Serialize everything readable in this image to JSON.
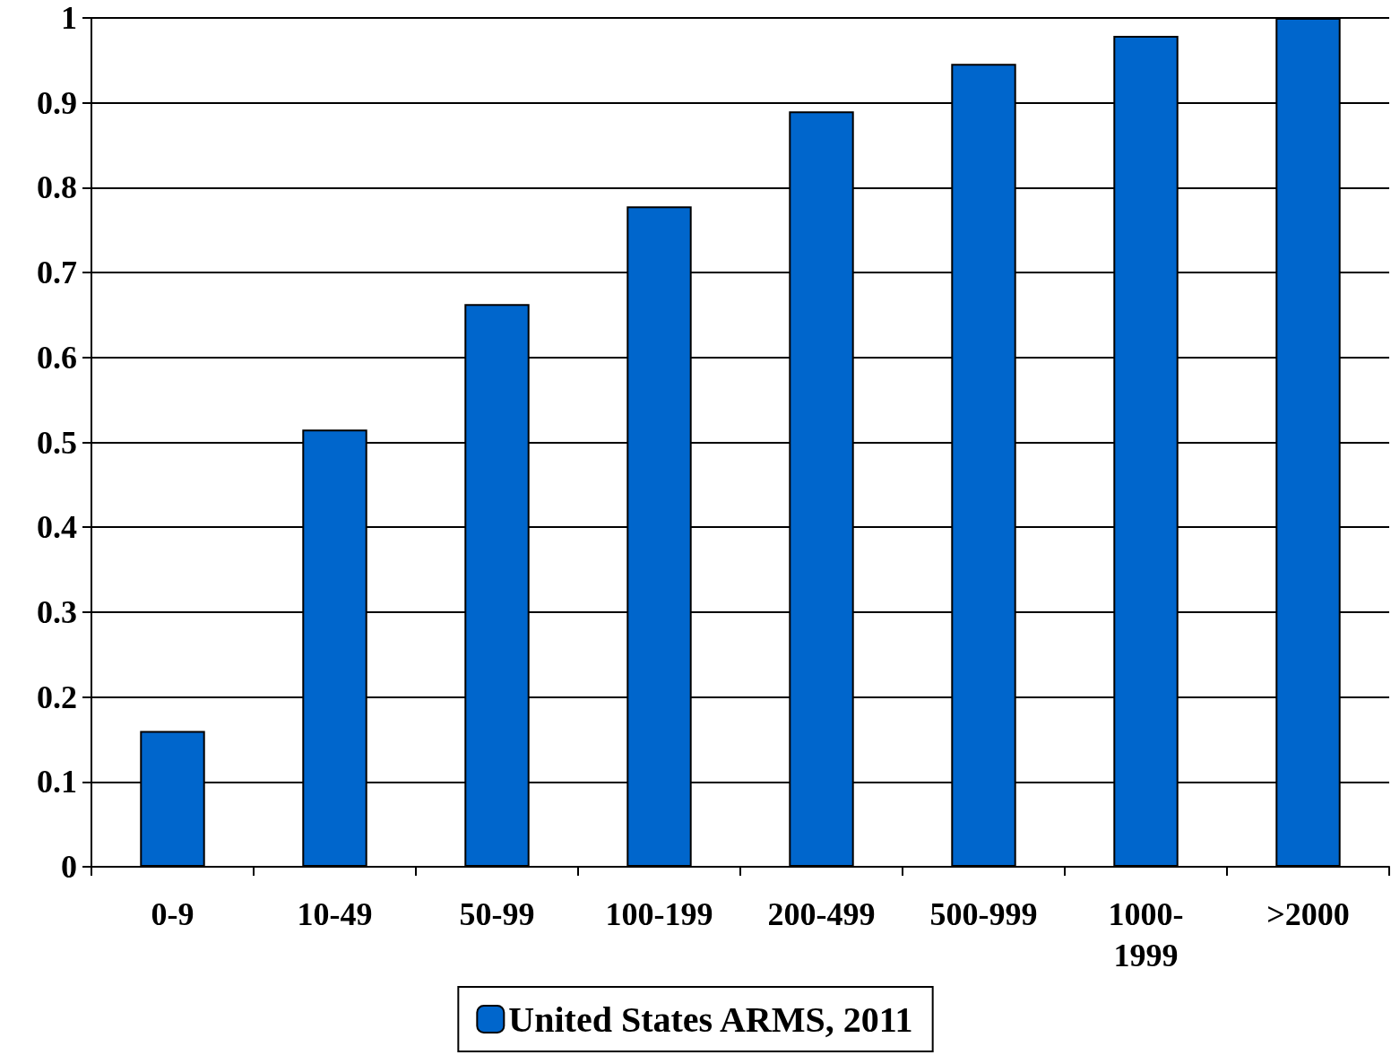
{
  "chart_data": {
    "type": "bar",
    "categories": [
      "0-9",
      "10-49",
      "50-99",
      "100-199",
      "200-499",
      "500-999",
      "1000-1999",
      ">2000"
    ],
    "series": [
      {
        "name": "United States ARMS, 2011",
        "color": "#0066cc",
        "values": [
          0.16,
          0.515,
          0.663,
          0.778,
          0.89,
          0.946,
          0.979,
          1.0
        ]
      }
    ],
    "ylim": [
      0,
      1
    ],
    "yticks": [
      0,
      0.1,
      0.2,
      0.3,
      0.4,
      0.5,
      0.6,
      0.7,
      0.8,
      0.9,
      1
    ],
    "grid": "y",
    "legend": "bottom"
  }
}
